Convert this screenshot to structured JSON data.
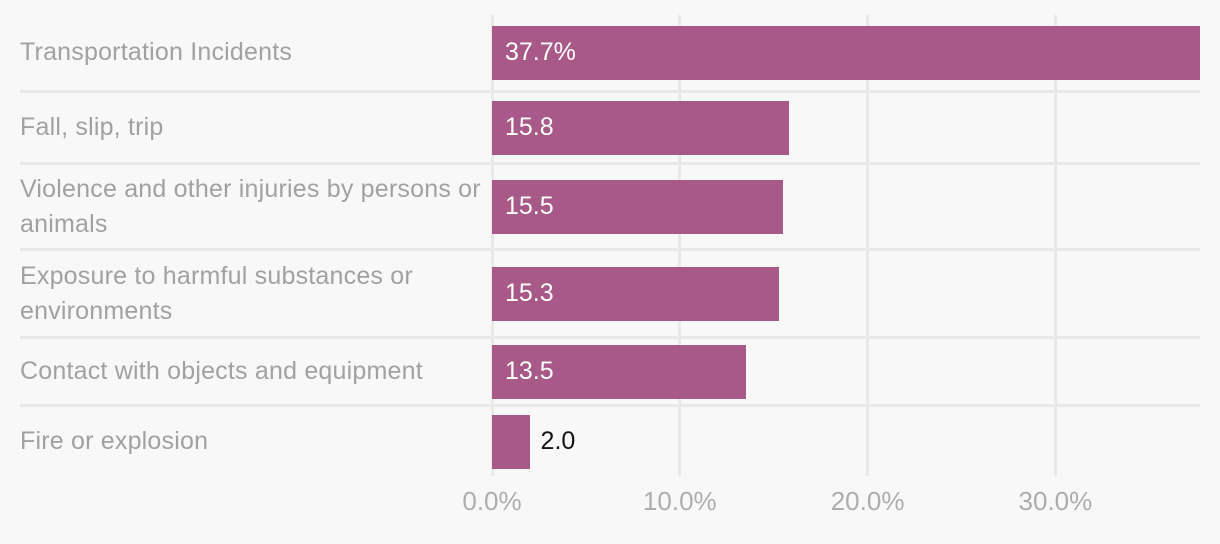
{
  "chart_data": {
    "type": "bar",
    "orientation": "horizontal",
    "title": "",
    "xlabel": "",
    "ylabel": "",
    "categories": [
      "Transportation Incidents",
      "Fall, slip, trip",
      "Violence and other injuries by persons or animals",
      "Exposure to harmful substances or environments",
      "Contact with objects and equipment",
      "Fire or explosion"
    ],
    "values": [
      37.7,
      15.8,
      15.5,
      15.3,
      13.5,
      2.0
    ],
    "value_labels": [
      "37.7%",
      "15.8",
      "15.5",
      "15.3",
      "13.5",
      "2.0"
    ],
    "x_ticks": [
      {
        "value": 0,
        "label": "0.0%"
      },
      {
        "value": 10,
        "label": "10.0%"
      },
      {
        "value": 20,
        "label": "20.0%"
      },
      {
        "value": 30,
        "label": "30.0%"
      }
    ],
    "xlim": [
      0,
      37.7
    ],
    "grid": true,
    "legend": "none",
    "bar_color": "#a95988",
    "background_color": "#f8f8f8",
    "gridline_color": "#e9e9e9",
    "category_label_color": "#a1a1a1",
    "axis_label_color": "#adadad",
    "value_label_inside_color": "#ffffff",
    "value_label_outside_color": "#151515"
  }
}
